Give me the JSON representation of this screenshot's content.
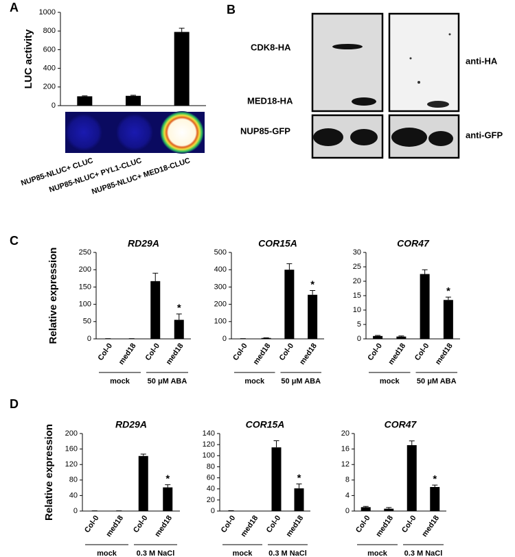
{
  "chart_data": [
    {
      "type": "bar",
      "panel": "A",
      "ylabel": "LUC activity",
      "categories": [
        "NUP85-NLUC+ CLUC",
        "NUP85-NLUC+ PYL1-CLUC",
        "NUP85-NLUC+ MED18-CLUC"
      ],
      "values": [
        100,
        105,
        790
      ],
      "errors": [
        5,
        6,
        40
      ],
      "color": "#000000",
      "ylim": [
        0,
        1000
      ],
      "yticks": [
        0,
        200,
        400,
        600,
        800,
        1000
      ]
    },
    {
      "type": "bar",
      "panel": "C",
      "title": "RD29A",
      "ylabel": "Relative expression",
      "categories": [
        "Col-0",
        "med18",
        "Col-0",
        "med18"
      ],
      "groups": [
        "mock",
        "50 μM ABA"
      ],
      "values": [
        0.5,
        0.5,
        167,
        55
      ],
      "errors": [
        0.2,
        0.2,
        23,
        17
      ],
      "color": "#000000",
      "annotation": "*",
      "ylim": [
        0,
        250
      ],
      "yticks": [
        0,
        50,
        100,
        150,
        200,
        250
      ]
    },
    {
      "type": "bar",
      "title": "COR15A",
      "categories": [
        "Col-0",
        "med18",
        "Col-0",
        "med18"
      ],
      "groups": [
        "mock",
        "50 μM ABA"
      ],
      "values": [
        1,
        5,
        400,
        255
      ],
      "errors": [
        0.5,
        1,
        35,
        25
      ],
      "color": "#000000",
      "annotation": "*",
      "ylim": [
        0,
        500
      ],
      "yticks": [
        0,
        100,
        200,
        300,
        400,
        500
      ]
    },
    {
      "type": "bar",
      "title": "COR47",
      "categories": [
        "Col-0",
        "med18",
        "Col-0",
        "med18"
      ],
      "groups": [
        "mock",
        "50 μM ABA"
      ],
      "values": [
        1,
        0.8,
        22.5,
        13.5
      ],
      "errors": [
        0.2,
        0.2,
        1.5,
        1
      ],
      "color": "#000000",
      "annotation": "*",
      "ylim": [
        0,
        30
      ],
      "yticks": [
        0,
        5,
        10,
        15,
        20,
        25,
        30
      ]
    },
    {
      "type": "bar",
      "panel": "D",
      "title": "RD29A",
      "ylabel": "Relative expression",
      "categories": [
        "Col-0",
        "med18",
        "Col-0",
        "med18"
      ],
      "groups": [
        "mock",
        "0.3 M NaCl"
      ],
      "values": [
        0.5,
        0.5,
        142,
        61
      ],
      "errors": [
        0.2,
        0.2,
        5,
        7
      ],
      "color": "#000000",
      "annotation": "*",
      "ylim": [
        0,
        200
      ],
      "yticks": [
        0,
        40,
        80,
        120,
        160,
        200
      ]
    },
    {
      "type": "bar",
      "title": "COR15A",
      "categories": [
        "Col-0",
        "med18",
        "Col-0",
        "med18"
      ],
      "groups": [
        "mock",
        "0.3 M NaCl"
      ],
      "values": [
        0.5,
        0,
        115,
        41
      ],
      "errors": [
        0.3,
        0,
        12,
        8
      ],
      "color": "#000000",
      "annotation": "*",
      "ylim": [
        0,
        140
      ],
      "yticks": [
        0,
        20,
        40,
        60,
        80,
        100,
        120,
        140
      ]
    },
    {
      "type": "bar",
      "title": "COR47",
      "categories": [
        "Col-0",
        "med18",
        "Col-0",
        "med18"
      ],
      "groups": [
        "mock",
        "0.3 M NaCl"
      ],
      "values": [
        1,
        0.6,
        17,
        6.2
      ],
      "errors": [
        0.2,
        0.3,
        1.1,
        0.5
      ],
      "color": "#000000",
      "annotation": "*",
      "ylim": [
        0,
        20
      ],
      "yticks": [
        0,
        4,
        8,
        12,
        16,
        20
      ]
    }
  ],
  "blot": {
    "panel": "B",
    "rows": [
      "CDK8-HA",
      "MED18-HA",
      "NUP85-GFP"
    ],
    "antibodies": [
      "anti-HA",
      "anti-GFP"
    ]
  }
}
